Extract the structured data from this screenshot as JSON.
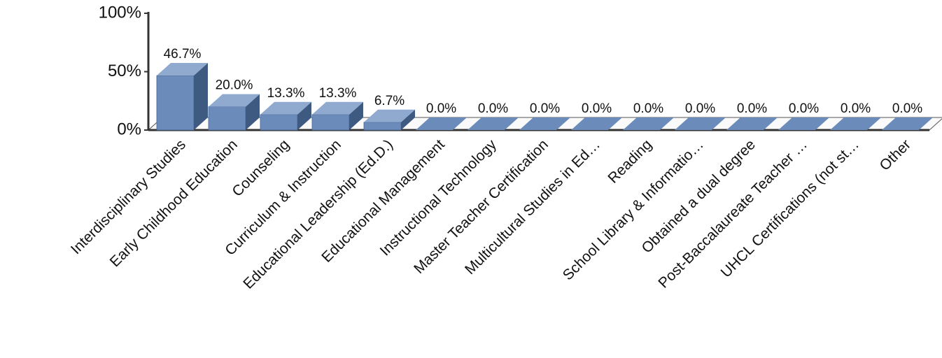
{
  "chart_data": {
    "type": "bar3d",
    "categories": [
      "Interdisciplinary Studies",
      "Early Childhood Education",
      "Counseling",
      "Curriculum & Instruction",
      "Educational Leadership (Ed.D.)",
      "Educational Management",
      "Instructional Technology",
      "Master Teacher Certification",
      "Multicultural Studies in Ed…",
      "Reading",
      "School Library & Informatio…",
      "Obtained a dual degree",
      "Post-Baccalaureate Teacher …",
      "UHCL Certifications (not st…",
      "Other"
    ],
    "values": [
      46.7,
      20.0,
      13.3,
      13.3,
      6.7,
      0,
      0,
      0,
      0,
      0,
      0,
      0,
      0,
      0,
      0
    ],
    "value_labels": [
      "46.7%",
      "20.0%",
      "13.3%",
      "13.3%",
      "6.7%",
      "0.0%",
      "0.0%",
      "0.0%",
      "0.0%",
      "0.0%",
      "0.0%",
      "0.0%",
      "0.0%",
      "0.0%",
      "0.0%"
    ],
    "color": "#6b8cba",
    "ylim": [
      0,
      100
    ],
    "yticks": [
      {
        "value": 0,
        "label": "0%"
      },
      {
        "value": 50,
        "label": "50%"
      },
      {
        "value": 100,
        "label": "100%"
      }
    ]
  }
}
